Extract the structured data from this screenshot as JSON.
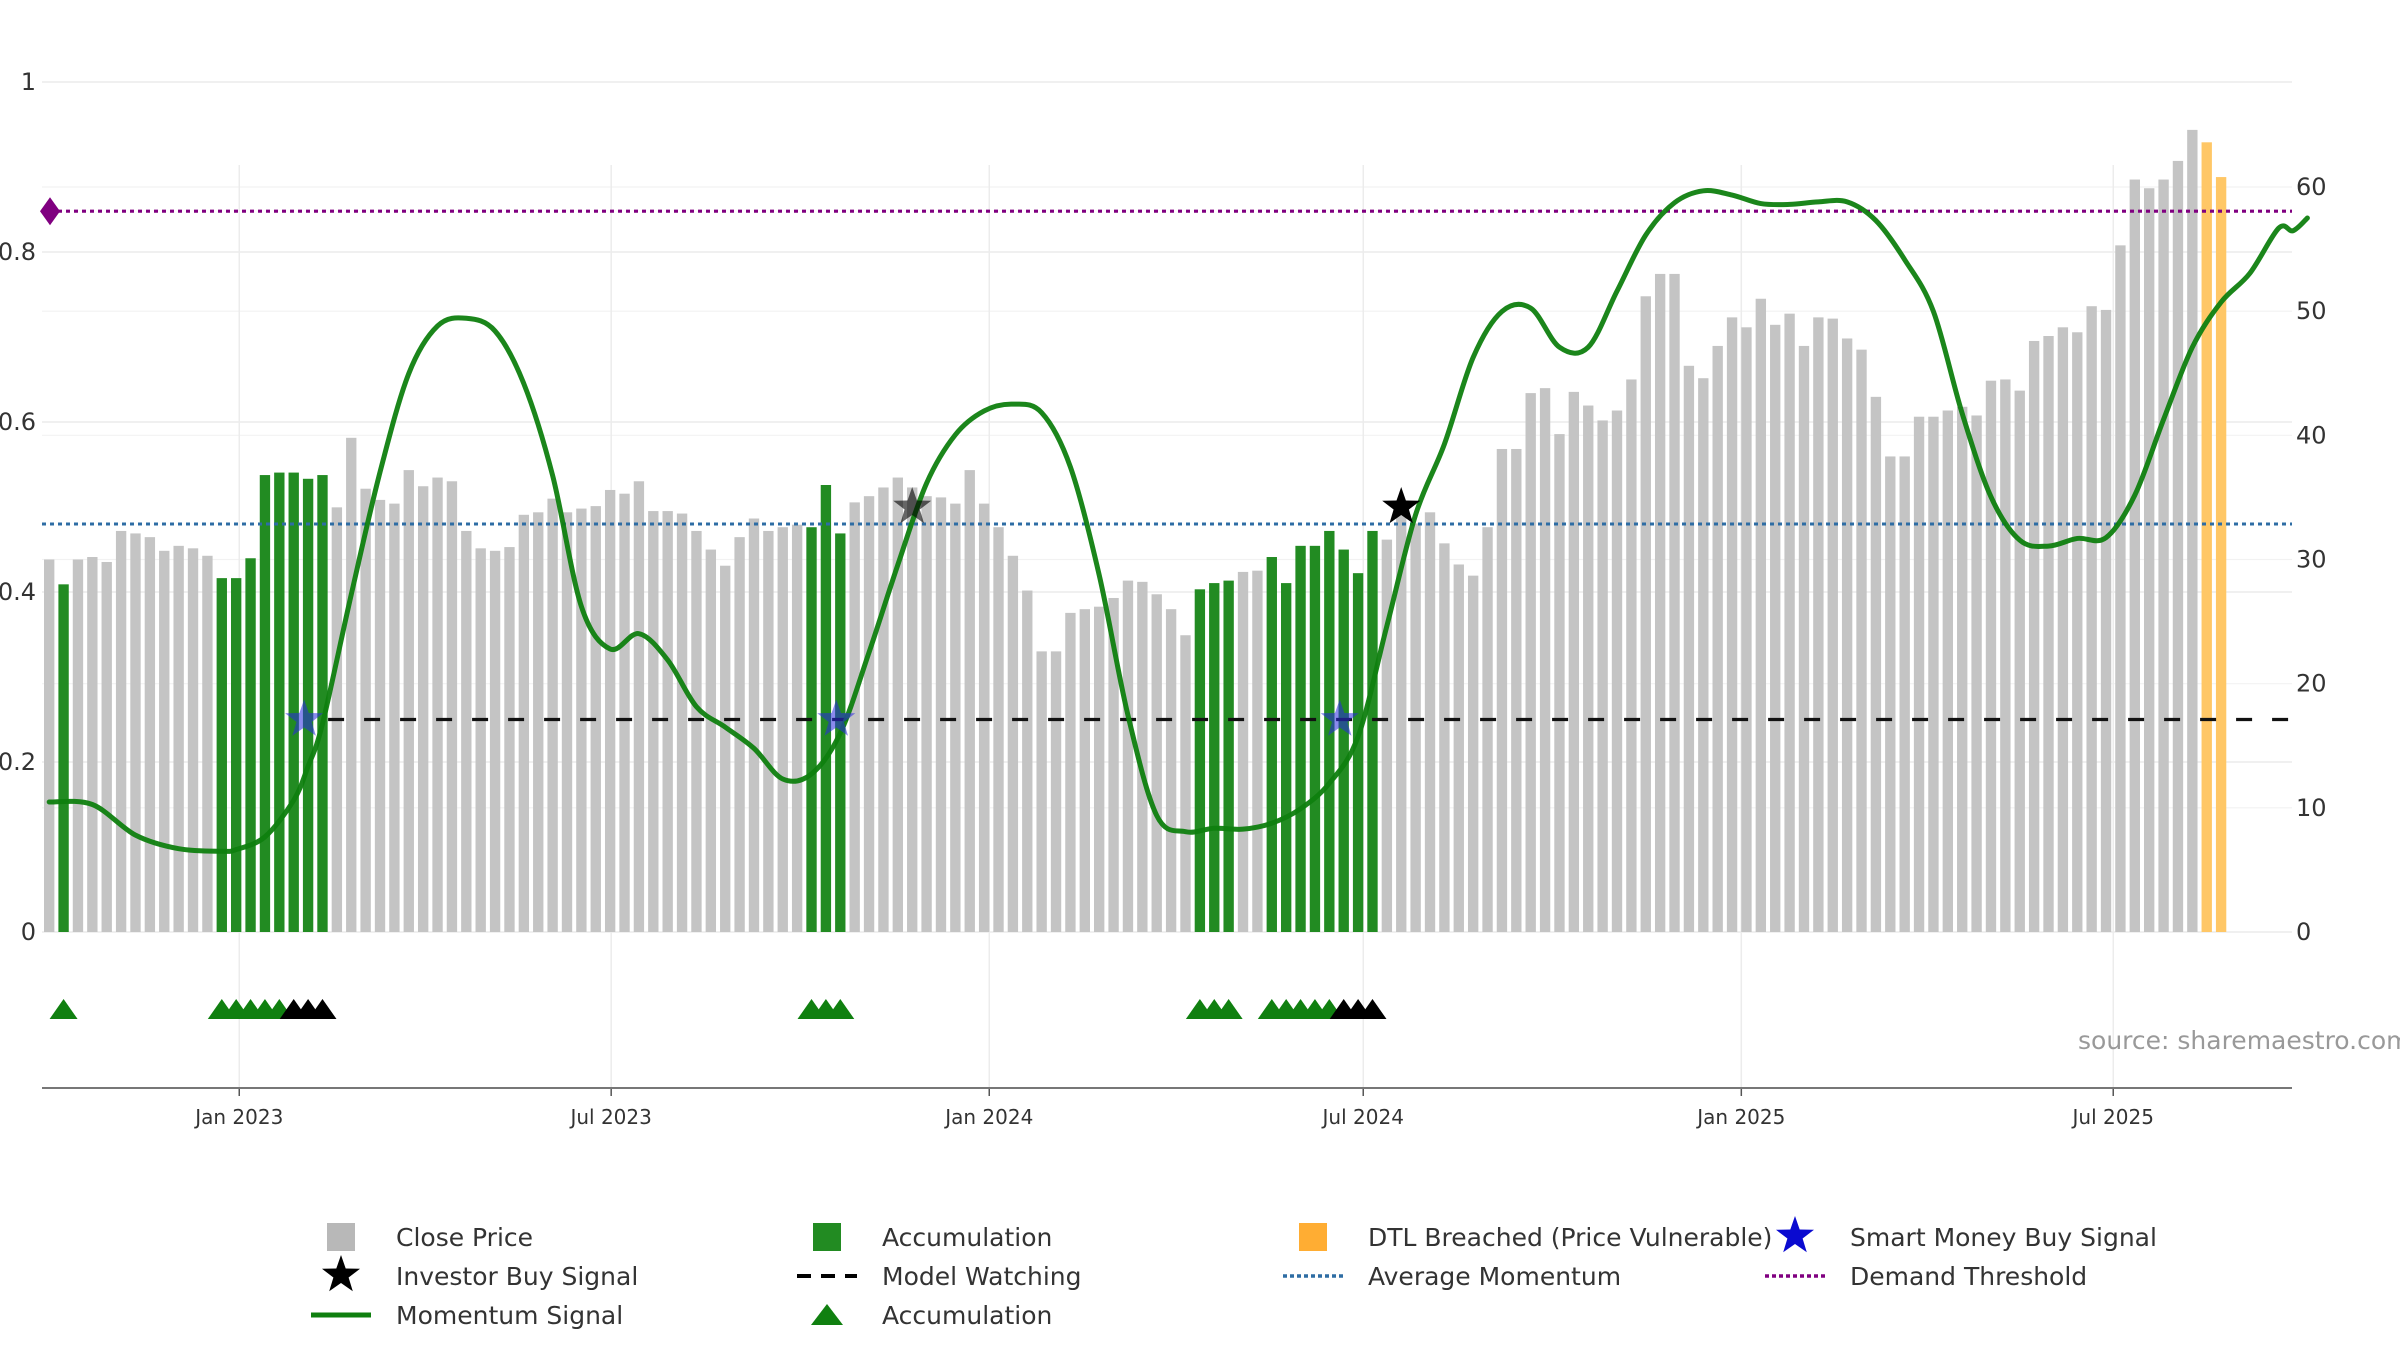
{
  "chart_data": {
    "type": "bar",
    "title": "",
    "source": "source: sharemaestro.com",
    "y_left": {
      "range": [
        0,
        1
      ],
      "ticks": [
        "0",
        "0.2",
        "0.4",
        "0.6",
        "0.8",
        "1"
      ],
      "tick_values": [
        0,
        0.2,
        0.4,
        0.6,
        0.8,
        1
      ]
    },
    "y_right": {
      "range": [
        0,
        68.5
      ],
      "ticks": [
        "0",
        "10",
        "20",
        "30",
        "40",
        "50",
        "60"
      ],
      "tick_values": [
        0,
        10,
        20,
        30,
        40,
        50,
        60
      ]
    },
    "x_axis": {
      "start": "2022-09-27",
      "end": "2025-09-26",
      "ticks": [
        {
          "label": "Jan 2023",
          "date": "2023-01-01"
        },
        {
          "label": "Jul 2023",
          "date": "2023-07-01"
        },
        {
          "label": "Jan 2024",
          "date": "2024-01-01"
        },
        {
          "label": "Jul 2024",
          "date": "2024-07-01"
        },
        {
          "label": "Jan 2025",
          "date": "2025-01-01"
        },
        {
          "label": "Jul 2025",
          "date": "2025-07-01"
        }
      ]
    },
    "grid": true,
    "legend_position": "bottom",
    "close_price_weekly": [
      30,
      28,
      30,
      30.2,
      29.8,
      32.3,
      32.1,
      31.8,
      30.7,
      31.1,
      30.9,
      30.3,
      28.5,
      28.5,
      30.1,
      36.8,
      37,
      37,
      36.5,
      36.8,
      34.2,
      39.8,
      35.7,
      34.8,
      34.5,
      37.2,
      35.9,
      36.6,
      36.3,
      32.3,
      30.9,
      30.7,
      31,
      33.6,
      33.8,
      34.9,
      33.8,
      34.1,
      34.3,
      35.6,
      35.3,
      36.3,
      33.9,
      33.9,
      33.7,
      32.3,
      30.8,
      29.5,
      31.8,
      33.3,
      32.3,
      32.6,
      32.8,
      32.6,
      36,
      32.1,
      34.6,
      35.1,
      35.8,
      36.6,
      35.8,
      35.1,
      35,
      34.5,
      37.2,
      34.5,
      32.6,
      30.3,
      27.5,
      22.6,
      22.6,
      25.7,
      26,
      26.2,
      26.9,
      28.3,
      28.2,
      27.2,
      26,
      23.9,
      27.6,
      28.1,
      28.3,
      29,
      29.1,
      30.2,
      28.1,
      31.1,
      31.1,
      32.3,
      30.8,
      28.9,
      32.3,
      31.6,
      33.8,
      32.9,
      33.8,
      31.3,
      29.6,
      28.7,
      32.6,
      38.9,
      38.9,
      43.4,
      43.8,
      40.1,
      43.5,
      42.4,
      41.2,
      42,
      44.5,
      51.2,
      53,
      53,
      45.6,
      44.6,
      47.2,
      49.5,
      48.7,
      51,
      48.9,
      49.8,
      47.2,
      49.5,
      49.4,
      47.8,
      46.9,
      43.1,
      38.3,
      38.3,
      41.5,
      41.5,
      42,
      42.3,
      41.6,
      44.4,
      44.5,
      43.6,
      47.6,
      48,
      48.7,
      48.3,
      50.4,
      50.1,
      55.3,
      60.6,
      59.9,
      60.6,
      62.1,
      64.6,
      63.6,
      60.8
    ],
    "accumulation_weeks": [
      1,
      12,
      13,
      14,
      15,
      16,
      17,
      18,
      19,
      53,
      54,
      55,
      80,
      81,
      82,
      85,
      86,
      87,
      88,
      89,
      90,
      91,
      92
    ],
    "dtl_breached_weeks": [
      150,
      151,
      152,
      153,
      154,
      155,
      156,
      157
    ],
    "momentum_signal": [
      [
        0,
        0.153
      ],
      [
        3,
        0.15
      ],
      [
        6,
        0.114
      ],
      [
        9,
        0.098
      ],
      [
        12,
        0.095
      ],
      [
        13,
        0.097
      ],
      [
        15,
        0.112
      ],
      [
        17,
        0.155
      ],
      [
        18,
        0.195
      ],
      [
        19,
        0.245
      ],
      [
        21,
        0.397
      ],
      [
        23,
        0.541
      ],
      [
        25,
        0.657
      ],
      [
        27,
        0.713
      ],
      [
        29,
        0.722
      ],
      [
        31,
        0.707
      ],
      [
        33,
        0.645
      ],
      [
        35,
        0.537
      ],
      [
        37,
        0.383
      ],
      [
        39,
        0.333
      ],
      [
        41,
        0.351
      ],
      [
        43,
        0.32
      ],
      [
        45,
        0.265
      ],
      [
        47,
        0.241
      ],
      [
        49,
        0.216
      ],
      [
        51,
        0.18
      ],
      [
        53,
        0.186
      ],
      [
        55,
        0.234
      ],
      [
        57,
        0.329
      ],
      [
        59,
        0.432
      ],
      [
        61,
        0.528
      ],
      [
        63,
        0.585
      ],
      [
        65,
        0.613
      ],
      [
        67,
        0.621
      ],
      [
        69,
        0.611
      ],
      [
        71,
        0.547
      ],
      [
        73,
        0.42
      ],
      [
        75,
        0.255
      ],
      [
        77,
        0.137
      ],
      [
        79,
        0.118
      ],
      [
        81,
        0.122
      ],
      [
        83,
        0.121
      ],
      [
        85,
        0.128
      ],
      [
        87,
        0.145
      ],
      [
        89,
        0.175
      ],
      [
        91,
        0.23
      ],
      [
        93,
        0.36
      ],
      [
        95,
        0.491
      ],
      [
        97,
        0.574
      ],
      [
        99,
        0.676
      ],
      [
        101,
        0.73
      ],
      [
        103,
        0.734
      ],
      [
        105,
        0.688
      ],
      [
        107,
        0.688
      ],
      [
        109,
        0.754
      ],
      [
        111,
        0.82
      ],
      [
        113,
        0.858
      ],
      [
        115,
        0.872
      ],
      [
        117,
        0.867
      ],
      [
        119,
        0.857
      ],
      [
        121,
        0.856
      ],
      [
        123,
        0.859
      ],
      [
        125,
        0.859
      ],
      [
        127,
        0.837
      ],
      [
        129,
        0.791
      ],
      [
        131,
        0.73
      ],
      [
        133,
        0.61
      ],
      [
        135,
        0.512
      ],
      [
        137,
        0.461
      ],
      [
        139,
        0.454
      ],
      [
        141,
        0.463
      ],
      [
        143,
        0.464
      ],
      [
        145,
        0.514
      ],
      [
        147,
        0.603
      ],
      [
        149,
        0.688
      ],
      [
        151,
        0.741
      ],
      [
        153,
        0.775
      ],
      [
        155,
        0.828
      ],
      [
        156,
        0.825
      ],
      [
        157,
        0.84
      ]
    ],
    "model_watching_level": 0.25,
    "average_momentum": 0.48,
    "demand_threshold": 0.848,
    "smart_money_buy_signals": [
      {
        "week": 18,
        "value": 0.25
      },
      {
        "week": 55,
        "value": 0.25
      },
      {
        "week": 90,
        "value": 0.25
      }
    ],
    "investor_buy_signals": [
      {
        "week": 60,
        "value": 0.5
      },
      {
        "week": 94,
        "value": 0.5
      }
    ],
    "accumulation_markers": {
      "green": [
        1,
        12,
        13,
        14,
        15,
        16,
        53,
        54,
        55,
        80,
        81,
        82,
        85,
        86,
        87,
        88,
        89
      ],
      "black": [
        17,
        18,
        19,
        90,
        91,
        92
      ]
    },
    "legend": [
      {
        "label": "Close Price",
        "symbol": "gray-square",
        "color": "#b8b8b8"
      },
      {
        "label": "Accumulation",
        "symbol": "green-square",
        "color": "#228b22"
      },
      {
        "label": "DTL Breached (Price Vulnerable)",
        "symbol": "orange-square",
        "color": "#ffad33"
      },
      {
        "label": "Smart Money Buy Signal",
        "symbol": "blue-star",
        "color": "#0a0ad0"
      },
      {
        "label": "Investor Buy Signal",
        "symbol": "black-star",
        "color": "#000000"
      },
      {
        "label": "Model Watching",
        "symbol": "black-dashed-line",
        "color": "#000000"
      },
      {
        "label": "Average Momentum",
        "symbol": "blue-dotted-line",
        "color": "#2e6da4"
      },
      {
        "label": "Demand Threshold",
        "symbol": "purple-dotted-line",
        "color": "#800080"
      },
      {
        "label": "Momentum Signal",
        "symbol": "green-line",
        "color": "#0f7f0f"
      },
      {
        "label": "Accumulation",
        "symbol": "green-triangle",
        "color": "#108010"
      }
    ],
    "colors": {
      "close": "#c4c4c4",
      "accumulation": "#228b22",
      "dtl": "#ffc766",
      "momentum": "#0f7f0f",
      "average_momentum": "#2e6da4",
      "demand": "#800080",
      "smart_money": "#2a2ae0",
      "investor": "#000000"
    }
  }
}
